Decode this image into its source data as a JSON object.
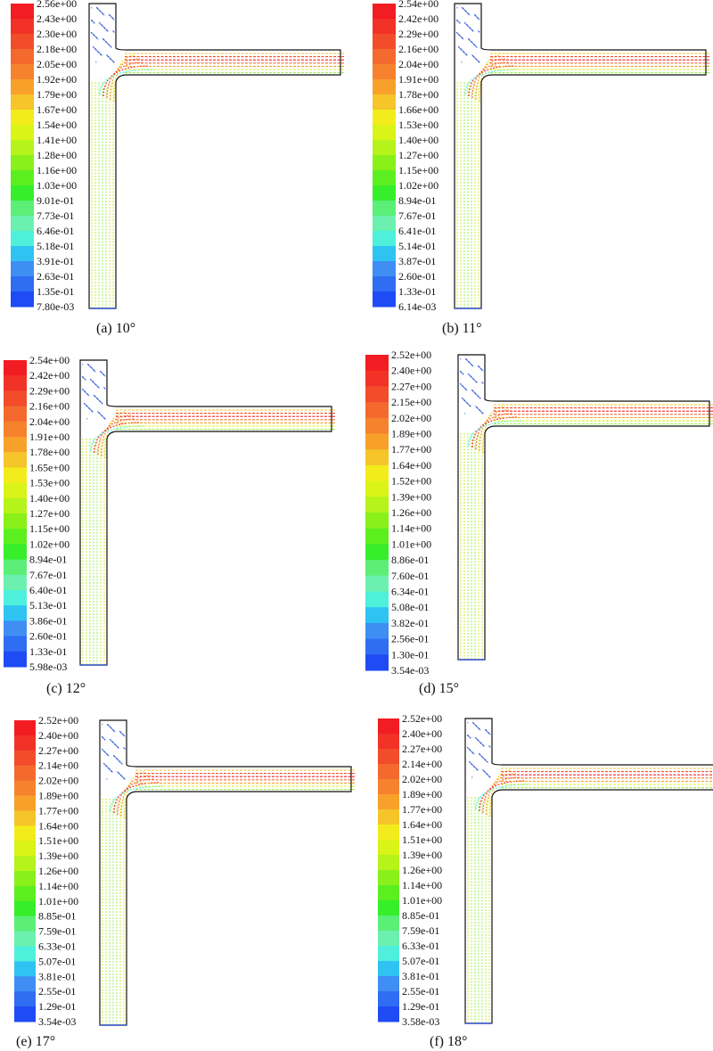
{
  "palette": [
    "#1f4bf5",
    "#2f6df2",
    "#3f8ef4",
    "#2fc3f2",
    "#4ef0dc",
    "#6cf0b0",
    "#5bef78",
    "#37ee2b",
    "#5cef20",
    "#8af01a",
    "#b5f31a",
    "#d9f416",
    "#f3ec1c",
    "#f5c52a",
    "#f7a12a",
    "#f6822d",
    "#f46a2e",
    "#f24c2b",
    "#f23226",
    "#f21d22"
  ],
  "panels": [
    {
      "caption": "(a) 10°",
      "levels": [
        "2.56e+00",
        "2.43e+00",
        "2.30e+00",
        "2.18e+00",
        "2.05e+00",
        "1.92e+00",
        "1.79e+00",
        "1.67e+00",
        "1.54e+00",
        "1.41e+00",
        "1.28e+00",
        "1.16e+00",
        "1.03e+00",
        "9.01e-01",
        "7.73e-01",
        "6.46e-01",
        "5.18e-01",
        "3.91e-01",
        "2.63e-01",
        "1.35e-01",
        "7.80e-03"
      ]
    },
    {
      "caption": "(b) 11°",
      "levels": [
        "2.54e+00",
        "2.42e+00",
        "2.29e+00",
        "2.16e+00",
        "2.04e+00",
        "1.91e+00",
        "1.78e+00",
        "1.66e+00",
        "1.53e+00",
        "1.40e+00",
        "1.27e+00",
        "1.15e+00",
        "1.02e+00",
        "8.94e-01",
        "7.67e-01",
        "6.41e-01",
        "5.14e-01",
        "3.87e-01",
        "2.60e-01",
        "1.33e-01",
        "6.14e-03"
      ]
    },
    {
      "caption": "(c) 12°",
      "levels": [
        "2.54e+00",
        "2.42e+00",
        "2.29e+00",
        "2.16e+00",
        "2.04e+00",
        "1.91e+00",
        "1.78e+00",
        "1.65e+00",
        "1.53e+00",
        "1.40e+00",
        "1.27e+00",
        "1.15e+00",
        "1.02e+00",
        "8.94e-01",
        "7.67e-01",
        "6.40e-01",
        "5.13e-01",
        "3.86e-01",
        "2.60e-01",
        "1.33e-01",
        "5.98e-03"
      ]
    },
    {
      "caption": "(d) 15°",
      "levels": [
        "2.52e+00",
        "2.40e+00",
        "2.27e+00",
        "2.15e+00",
        "2.02e+00",
        "1.89e+00",
        "1.77e+00",
        "1.64e+00",
        "1.52e+00",
        "1.39e+00",
        "1.26e+00",
        "1.14e+00",
        "1.01e+00",
        "8.86e-01",
        "7.60e-01",
        "6.34e-01",
        "5.08e-01",
        "3.82e-01",
        "2.56e-01",
        "1.30e-01",
        "3.54e-03"
      ]
    },
    {
      "caption": "(e) 17°",
      "levels": [
        "2.52e+00",
        "2.40e+00",
        "2.27e+00",
        "2.14e+00",
        "2.02e+00",
        "1.89e+00",
        "1.77e+00",
        "1.64e+00",
        "1.51e+00",
        "1.39e+00",
        "1.26e+00",
        "1.14e+00",
        "1.01e+00",
        "8.85e-01",
        "7.59e-01",
        "6.33e-01",
        "5.07e-01",
        "3.81e-01",
        "2.55e-01",
        "1.29e-01",
        "3.54e-03"
      ]
    },
    {
      "caption": "(f) 18°",
      "levels": [
        "2.52e+00",
        "2.40e+00",
        "2.27e+00",
        "2.14e+00",
        "2.02e+00",
        "1.89e+00",
        "1.77e+00",
        "1.64e+00",
        "1.51e+00",
        "1.39e+00",
        "1.26e+00",
        "1.14e+00",
        "1.01e+00",
        "8.85e-01",
        "7.59e-01",
        "6.33e-01",
        "5.07e-01",
        "3.81e-01",
        "2.55e-01",
        "1.29e-01",
        "3.58e-03"
      ]
    }
  ]
}
